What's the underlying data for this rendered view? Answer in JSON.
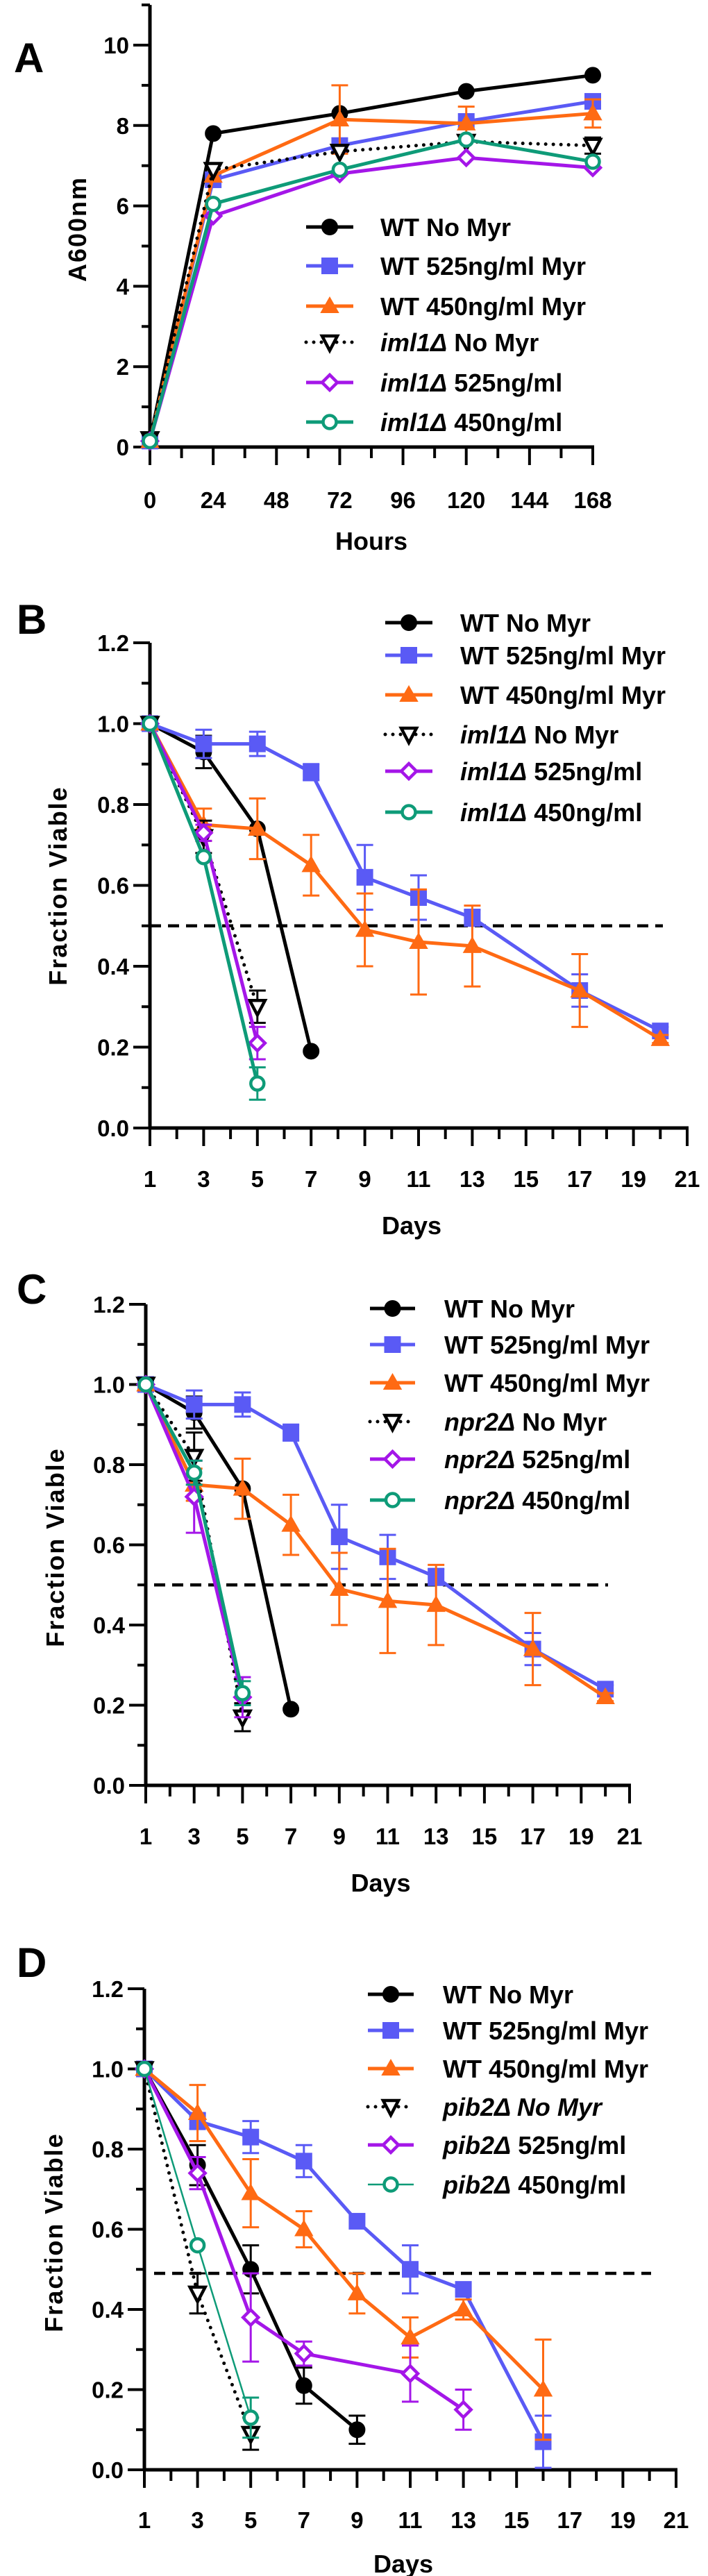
{
  "chart_data": [
    {
      "type": "line",
      "panel_label": "A",
      "xlabel": "Hours",
      "ylabel": "A600nm",
      "xlim": [
        0,
        168
      ],
      "ylim": [
        0,
        11
      ],
      "xticks": [
        0,
        24,
        48,
        72,
        96,
        120,
        144,
        168
      ],
      "xtick_labels": [
        "0",
        "24",
        "48",
        "72",
        "96",
        "120",
        "144",
        "168"
      ],
      "yticks": [
        0,
        2,
        4,
        6,
        8,
        10
      ],
      "ytick_labels": [
        "0",
        "2",
        "4",
        "6",
        "8",
        "10"
      ],
      "threshold": null,
      "series": [
        {
          "label": "WT No Myr",
          "italic": "",
          "color": "#000000",
          "marker": "circle",
          "line": "solid",
          "x": [
            0,
            24,
            72,
            120,
            168
          ],
          "y": [
            0.15,
            7.8,
            8.3,
            8.85,
            9.25
          ],
          "err": [
            0,
            0,
            0,
            0,
            0
          ]
        },
        {
          "label": "WT 525ng/ml Myr",
          "italic": "",
          "color": "#5A5AF5",
          "marker": "square",
          "line": "solid",
          "x": [
            0,
            24,
            72,
            120,
            168
          ],
          "y": [
            0.15,
            6.65,
            7.5,
            8.1,
            8.6
          ],
          "err": [
            0,
            0,
            0,
            0,
            0
          ]
        },
        {
          "label": "WT 450ng/ml Myr",
          "italic": "",
          "color": "#FF6A13",
          "marker": "triangle",
          "line": "solid",
          "x": [
            0,
            24,
            72,
            120,
            168
          ],
          "y": [
            0.15,
            6.75,
            8.15,
            8.05,
            8.3
          ],
          "err": [
            0,
            0,
            0.85,
            0.42,
            0.35
          ]
        },
        {
          "label": "iml1Δ No Myr",
          "italic": "iml1Δ",
          "color": "#000000",
          "marker": "triangle-down-open",
          "line": "dotted",
          "x": [
            0,
            24,
            72,
            120,
            168
          ],
          "y": [
            0.2,
            6.9,
            7.35,
            7.6,
            7.5
          ],
          "err": [
            0,
            0,
            0,
            0,
            0.2
          ]
        },
        {
          "label": "iml1Δ 525ng/ml",
          "italic": "iml1Δ",
          "color": "#A416E8",
          "marker": "diamond-open",
          "line": "solid",
          "x": [
            0,
            24,
            72,
            120,
            168
          ],
          "y": [
            0.15,
            5.75,
            6.8,
            7.2,
            6.95
          ],
          "err": [
            0,
            0,
            0,
            0,
            0
          ]
        },
        {
          "label": "iml1Δ 450ng/ml",
          "italic": "iml1Δ",
          "color": "#0E9B78",
          "marker": "circle-open",
          "line": "solid",
          "x": [
            0,
            24,
            72,
            120,
            168
          ],
          "y": [
            0.15,
            6.05,
            6.9,
            7.65,
            7.1
          ],
          "err": [
            0,
            0,
            0,
            0,
            0
          ]
        }
      ]
    },
    {
      "type": "line",
      "panel_label": "B",
      "xlabel": "Days",
      "ylabel": "Fraction Viable",
      "xlim": [
        1,
        21
      ],
      "ylim": [
        0,
        1.2
      ],
      "xticks": [
        1,
        3,
        5,
        7,
        9,
        11,
        13,
        15,
        17,
        19,
        21
      ],
      "xtick_labels": [
        "1",
        "3",
        "5",
        "7",
        "9",
        "11",
        "13",
        "15",
        "17",
        "19",
        "21"
      ],
      "yticks": [
        0,
        0.2,
        0.4,
        0.6,
        0.8,
        1.0,
        1.2
      ],
      "ytick_labels": [
        "0.0",
        "0.2",
        "0.4",
        "0.6",
        "0.8",
        "1.0",
        "1.2"
      ],
      "threshold": 0.5,
      "series": [
        {
          "label": "WT No Myr",
          "italic": "",
          "color": "#000000",
          "marker": "circle",
          "line": "solid",
          "x": [
            1,
            3,
            5,
            7
          ],
          "y": [
            1.0,
            0.93,
            0.74,
            0.19
          ],
          "err": [
            0,
            0.04,
            0,
            0
          ]
        },
        {
          "label": "WT 525ng/ml Myr",
          "italic": "",
          "color": "#5A5AF5",
          "marker": "square",
          "line": "solid",
          "x": [
            1,
            3,
            5,
            7,
            9,
            11,
            13,
            17,
            20
          ],
          "y": [
            1.0,
            0.95,
            0.95,
            0.88,
            0.62,
            0.57,
            0.52,
            0.34,
            0.24
          ],
          "err": [
            0,
            0.035,
            0.03,
            0.02,
            0.08,
            0.055,
            0.02,
            0.04,
            0.01
          ]
        },
        {
          "label": "WT 450ng/ml Myr",
          "italic": "",
          "color": "#FF6A13",
          "marker": "triangle",
          "line": "solid",
          "x": [
            1,
            3,
            5,
            7,
            9,
            11,
            13,
            17,
            20
          ],
          "y": [
            1.0,
            0.75,
            0.74,
            0.65,
            0.49,
            0.46,
            0.45,
            0.34,
            0.22
          ],
          "err": [
            0,
            0.04,
            0.075,
            0.075,
            0.09,
            0.13,
            0.1,
            0.09,
            0.01
          ]
        },
        {
          "label": "iml1Δ No Myr",
          "italic": "iml1Δ",
          "color": "#000000",
          "marker": "triangle-down-open",
          "line": "dotted",
          "x": [
            1,
            3,
            5
          ],
          "y": [
            1.0,
            0.72,
            0.3
          ],
          "err": [
            0,
            0.04,
            0.04
          ]
        },
        {
          "label": "iml1Δ 525ng/ml",
          "italic": "iml1Δ",
          "color": "#A416E8",
          "marker": "diamond-open",
          "line": "solid",
          "x": [
            1,
            3,
            5
          ],
          "y": [
            1.0,
            0.73,
            0.21
          ],
          "err": [
            0,
            0.02,
            0.04
          ]
        },
        {
          "label": "iml1Δ 450ng/ml",
          "italic": "iml1Δ",
          "color": "#0E9B78",
          "marker": "circle-open",
          "line": "solid",
          "x": [
            1,
            3,
            5
          ],
          "y": [
            1.0,
            0.67,
            0.11
          ],
          "err": [
            0,
            0,
            0.04
          ]
        }
      ]
    },
    {
      "type": "line",
      "panel_label": "C",
      "xlabel": "Days",
      "ylabel": "Fraction Viable",
      "xlim": [
        1,
        21
      ],
      "ylim": [
        0,
        1.2
      ],
      "xticks": [
        1,
        3,
        5,
        7,
        9,
        11,
        13,
        15,
        17,
        19,
        21
      ],
      "xtick_labels": [
        "1",
        "3",
        "5",
        "7",
        "9",
        "11",
        "13",
        "15",
        "17",
        "19",
        "21"
      ],
      "yticks": [
        0,
        0.2,
        0.4,
        0.6,
        0.8,
        1.0,
        1.2
      ],
      "ytick_labels": [
        "0.0",
        "0.2",
        "0.4",
        "0.6",
        "0.8",
        "1.0",
        "1.2"
      ],
      "threshold": 0.5,
      "series": [
        {
          "label": "WT No Myr",
          "italic": "",
          "color": "#000000",
          "marker": "circle",
          "line": "solid",
          "x": [
            1,
            3,
            5,
            7
          ],
          "y": [
            1.0,
            0.93,
            0.74,
            0.19
          ],
          "err": [
            0,
            0.04,
            0,
            0
          ]
        },
        {
          "label": "WT 525ng/ml Myr",
          "italic": "",
          "color": "#5A5AF5",
          "marker": "square",
          "line": "solid",
          "x": [
            1,
            3,
            5,
            7,
            9,
            11,
            13,
            17,
            20
          ],
          "y": [
            1.0,
            0.95,
            0.95,
            0.88,
            0.62,
            0.57,
            0.52,
            0.34,
            0.24
          ],
          "err": [
            0,
            0.035,
            0.03,
            0.02,
            0.08,
            0.055,
            0.02,
            0.04,
            0.01
          ]
        },
        {
          "label": "WT 450ng/ml Myr",
          "italic": "",
          "color": "#FF6A13",
          "marker": "triangle",
          "line": "solid",
          "x": [
            1,
            3,
            5,
            7,
            9,
            11,
            13,
            17,
            20
          ],
          "y": [
            1.0,
            0.75,
            0.74,
            0.65,
            0.49,
            0.46,
            0.45,
            0.34,
            0.22
          ],
          "err": [
            0,
            0.04,
            0.075,
            0.075,
            0.09,
            0.13,
            0.1,
            0.09,
            0.01
          ]
        },
        {
          "label": "npr2Δ No Myr",
          "italic": "npr2Δ",
          "color": "#000000",
          "marker": "triangle-down-open",
          "line": "dotted",
          "x": [
            1,
            3,
            5
          ],
          "y": [
            1.0,
            0.82,
            0.17
          ],
          "err": [
            0,
            0.06,
            0.035
          ]
        },
        {
          "label": "npr2Δ 525ng/ml",
          "italic": "npr2Δ",
          "color": "#A416E8",
          "marker": "diamond-open",
          "line": "solid",
          "x": [
            1,
            3,
            5
          ],
          "y": [
            1.0,
            0.72,
            0.22
          ],
          "err": [
            0,
            0.09,
            0.05
          ]
        },
        {
          "label": "npr2Δ 450ng/ml",
          "italic": "npr2Δ",
          "color": "#0E9B78",
          "marker": "circle-open",
          "line": "solid",
          "x": [
            1,
            3,
            5
          ],
          "y": [
            1.0,
            0.78,
            0.23
          ],
          "err": [
            0,
            0.03,
            0.03
          ]
        }
      ]
    },
    {
      "type": "line",
      "panel_label": "D",
      "xlabel": "Days",
      "ylabel": "Fraction Viable",
      "xlim": [
        1,
        21
      ],
      "ylim": [
        0,
        1.2
      ],
      "xticks": [
        1,
        3,
        5,
        7,
        9,
        11,
        13,
        15,
        17,
        19,
        21
      ],
      "xtick_labels": [
        "1",
        "3",
        "5",
        "7",
        "9",
        "11",
        "13",
        "15",
        "17",
        "19",
        "21"
      ],
      "yticks": [
        0,
        0.2,
        0.4,
        0.6,
        0.8,
        1.0,
        1.2
      ],
      "ytick_labels": [
        "0.0",
        "0.2",
        "0.4",
        "0.6",
        "0.8",
        "1.0",
        "1.2"
      ],
      "threshold": 0.49,
      "series": [
        {
          "label": "WT No Myr",
          "italic": "",
          "color": "#000000",
          "marker": "circle",
          "line": "solid",
          "x": [
            1,
            3,
            5,
            7,
            9
          ],
          "y": [
            1.0,
            0.76,
            0.5,
            0.21,
            0.1
          ],
          "err": [
            0,
            0.05,
            0.06,
            0.045,
            0.035
          ]
        },
        {
          "label": "WT 525ng/ml Myr",
          "italic": "",
          "color": "#5A5AF5",
          "marker": "square",
          "line": "solid",
          "x": [
            1,
            3,
            5,
            7,
            9,
            11,
            13,
            16
          ],
          "y": [
            1.0,
            0.87,
            0.83,
            0.77,
            0.62,
            0.5,
            0.45,
            0.07
          ],
          "err": [
            0,
            0.02,
            0.04,
            0.04,
            0,
            0.06,
            0,
            0.065
          ]
        },
        {
          "label": "WT 450ng/ml Myr",
          "italic": "",
          "color": "#FF6A13",
          "marker": "triangle",
          "line": "solid",
          "x": [
            1,
            3,
            5,
            7,
            9,
            11,
            13,
            16
          ],
          "y": [
            1.0,
            0.89,
            0.69,
            0.6,
            0.44,
            0.33,
            0.4,
            0.2
          ],
          "err": [
            0,
            0.07,
            0.085,
            0.045,
            0.05,
            0.05,
            0.025,
            0.125
          ]
        },
        {
          "label": "pib2Δ No Myr",
          "italic": "pib2Δ No Myr",
          "color": "#000000",
          "marker": "triangle-down-open",
          "line": "dotted",
          "x": [
            1,
            3,
            5
          ],
          "y": [
            1.0,
            0.44,
            0.09
          ],
          "err": [
            0,
            0.05,
            0.04
          ]
        },
        {
          "label": "pib2Δ 525ng/ml",
          "italic": "pib2Δ",
          "color": "#A416E8",
          "marker": "diamond-open",
          "line": "solid",
          "x": [
            1,
            3,
            5,
            7,
            11,
            13
          ],
          "y": [
            1.0,
            0.74,
            0.38,
            0.29,
            0.24,
            0.15
          ],
          "err": [
            0,
            0.04,
            0.11,
            0.03,
            0.07,
            0.05
          ]
        },
        {
          "label": "pib2Δ 450ng/ml",
          "italic": "pib2Δ",
          "color": "#0E9B78",
          "marker": "circle-open",
          "line": "solid",
          "thin": true,
          "x": [
            1,
            3,
            5
          ],
          "y": [
            1.0,
            0.56,
            0.13
          ],
          "err": [
            0,
            0,
            0.05
          ]
        }
      ]
    }
  ]
}
